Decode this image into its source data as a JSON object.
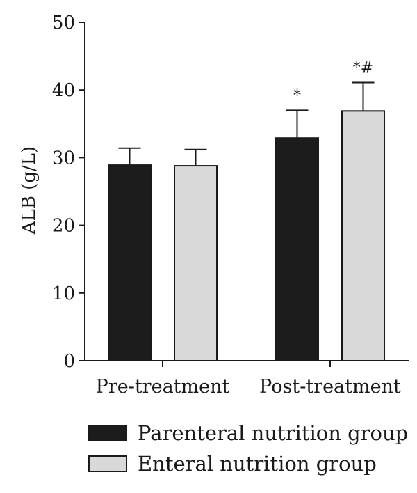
{
  "chart_data": {
    "type": "bar",
    "categories": [
      "Pre-treatment",
      "Post-treatment"
    ],
    "series": [
      {
        "name": "Parenteral nutrition group",
        "color": "#1c1c1c",
        "values": [
          28.9,
          32.9
        ],
        "errors": [
          2.5,
          4.1
        ],
        "annotations": [
          "",
          "*"
        ]
      },
      {
        "name": "Enteral nutrition group",
        "color": "#d9d9d9",
        "values": [
          28.8,
          36.9
        ],
        "errors": [
          2.4,
          4.2
        ],
        "annotations": [
          "",
          "*#"
        ]
      }
    ],
    "ylabel": "ALB (g/L)",
    "ylim": [
      0,
      50
    ],
    "yticks": [
      "0",
      "10",
      "20",
      "30",
      "40",
      "50"
    ],
    "legend_position": "bottom",
    "grid": false
  }
}
